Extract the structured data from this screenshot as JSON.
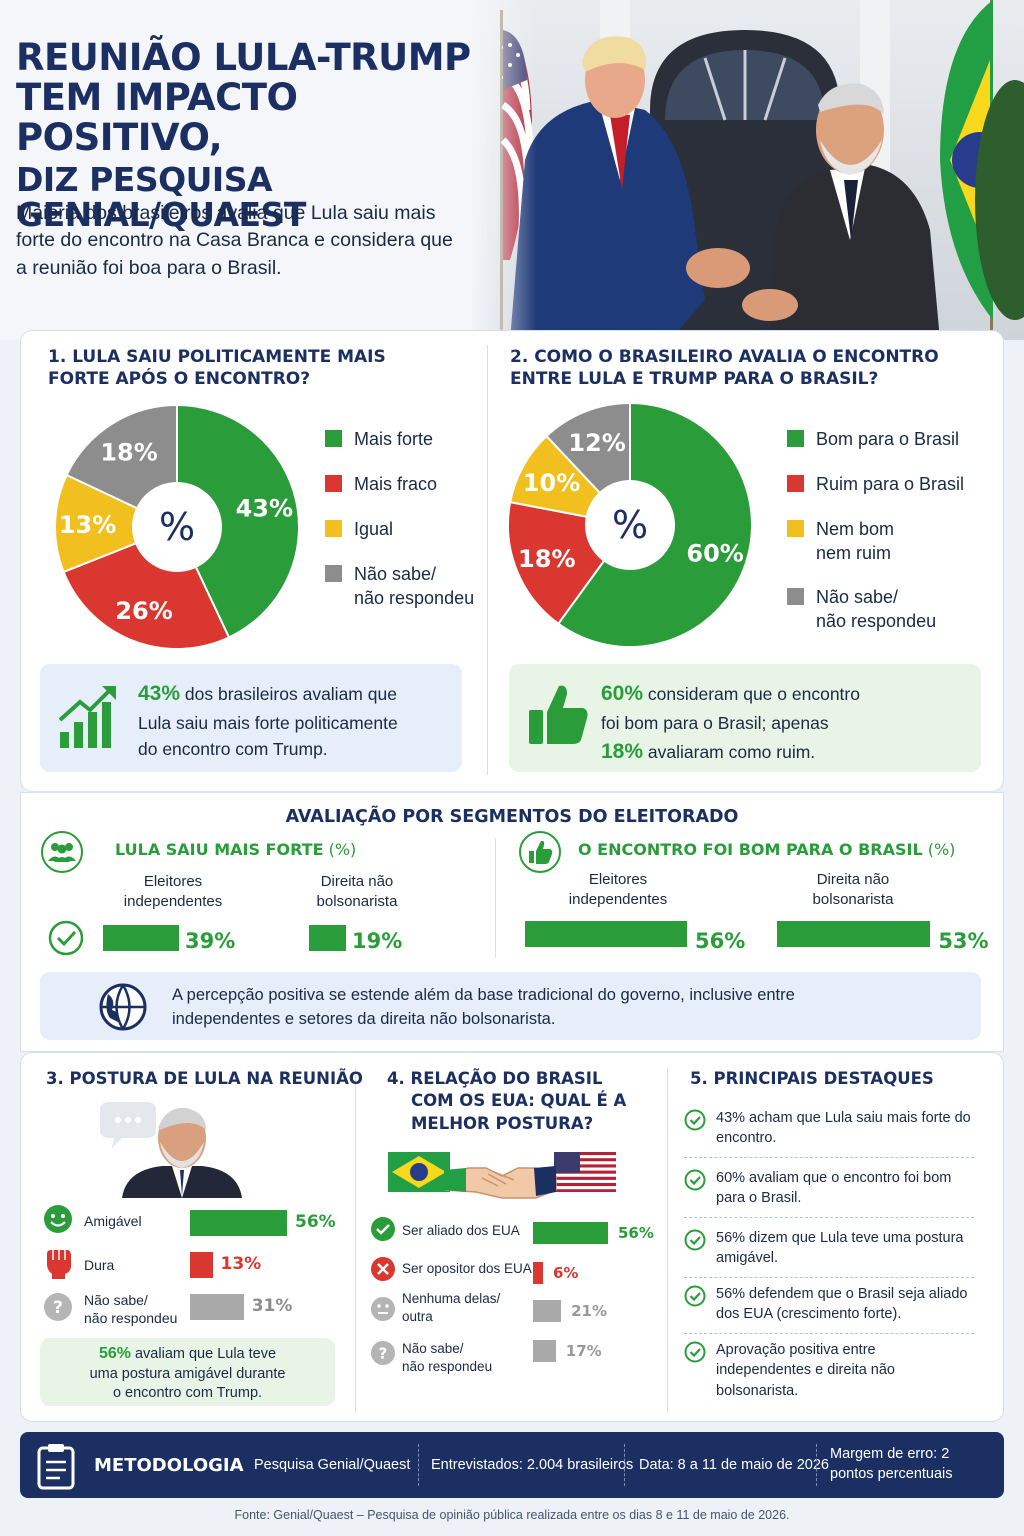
{
  "header": {
    "title_line1": "REUNIÃO LULA-TRUMP",
    "title_line2": "TEM IMPACTO POSITIVO,",
    "title_line3": "DIZ PESQUISA GENIAL/QUAEST",
    "subtitle": "Maioria dos brasileiros avalia que Lula saiu mais forte do encontro na Casa Branca e considera que a reunião foi boa para o Brasil."
  },
  "q1": {
    "title": "1. LULA SAIU POLITICAMENTE MAIS FORTE APÓS O ENCONTRO?",
    "center": "%",
    "slices": [
      {
        "label": "Mais forte",
        "value": 43,
        "text": "43%",
        "color": "#2a9d3a"
      },
      {
        "label": "Mais fraco",
        "value": 26,
        "text": "26%",
        "color": "#d9372f"
      },
      {
        "label": "Igual",
        "value": 13,
        "text": "13%",
        "color": "#f2c01e"
      },
      {
        "label": "Não sabe/\nnão respondeu",
        "value": 18,
        "text": "18%",
        "color": "#8d8d8d"
      }
    ],
    "legend": [
      "Mais forte",
      "Mais fraco",
      "Igual",
      "Não sabe/",
      "não respondeu"
    ],
    "callout_value": "43%",
    "callout_text_1": " dos brasileiros avaliam que",
    "callout_text_2": "Lula saiu mais forte politicamente",
    "callout_text_3": "do encontro com Trump."
  },
  "q2": {
    "title": "2. COMO O BRASILEIRO AVALIA O ENCONTRO ENTRE LULA E TRUMP PARA O BRASIL?",
    "center": "%",
    "slices": [
      {
        "label": "Bom para o Brasil",
        "value": 60,
        "text": "60%",
        "color": "#2a9d3a"
      },
      {
        "label": "Ruim para o Brasil",
        "value": 18,
        "text": "18%",
        "color": "#d9372f"
      },
      {
        "label": "Nem bom nem ruim",
        "value": 10,
        "text": "10%",
        "color": "#f2c01e"
      },
      {
        "label": "Não sabe/ não respondeu",
        "value": 12,
        "text": "12%",
        "color": "#8d8d8d"
      }
    ],
    "legend": [
      "Bom para o Brasil",
      "Ruim para o Brasil",
      "Nem bom",
      "nem ruim",
      "Não sabe/",
      "não respondeu"
    ],
    "callout_value1": "60%",
    "callout_text_1": " consideram que o encontro",
    "callout_text_2": "foi bom para o Brasil; apenas",
    "callout_value2": "18%",
    "callout_text_3": " avaliaram como ruim."
  },
  "segments": {
    "title": "AVALIAÇÃO POR SEGMENTOS DO ELEITORADO",
    "left_title": "LULA SAIU MAIS FORTE",
    "left_unit": " (%)",
    "right_title": "O ENCONTRO FOI BOM PARA O BRASIL",
    "right_unit": " (%)",
    "cat1_a": "Eleitores",
    "cat1_b": "independentes",
    "cat2_a": "Direita não",
    "cat2_b": "bolsonarista",
    "left_values": [
      39,
      19
    ],
    "left_texts": [
      "39%",
      "19%"
    ],
    "right_values": [
      56,
      53
    ],
    "right_texts": [
      "56%",
      "53%"
    ],
    "note_1": "A percepção positiva se estende além da base tradicional do governo, inclusive entre",
    "note_2": "independentes e setores da direita não bolsonarista."
  },
  "q3": {
    "title": "3. POSTURA DE LULA NA REUNIÃO",
    "rows": [
      {
        "label": "Amigável",
        "value": 56,
        "text": "56%",
        "color": "#2a9d3a"
      },
      {
        "label": "Dura",
        "value": 13,
        "text": "13%",
        "color": "#d9372f"
      },
      {
        "label_a": "Não sabe/",
        "label_b": "não respondeu",
        "value": 31,
        "text": "31%",
        "color": "#a9a9a9"
      }
    ],
    "callout_value": "56%",
    "callout_text_1": " avaliam que Lula teve",
    "callout_text_2": "uma postura amigável durante",
    "callout_text_3": "o encontro com Trump."
  },
  "q4": {
    "title_1": "4. RELAÇÃO DO BRASIL",
    "title_2": "COM OS EUA: QUAL É A",
    "title_3": "MELHOR POSTURA?",
    "rows": [
      {
        "label": "Ser aliado dos EUA",
        "value": 56,
        "text": "56%",
        "color": "#2a9d3a"
      },
      {
        "label": "Ser opositor dos EUA",
        "value": 6,
        "text": "6%",
        "color": "#d9372f"
      },
      {
        "label_a": "Nenhuma delas/",
        "label_b": "outra",
        "value": 21,
        "text": "21%",
        "color": "#a9a9a9"
      },
      {
        "label_a": "Não sabe/",
        "label_b": "não respondeu",
        "value": 17,
        "text": "17%",
        "color": "#a9a9a9"
      }
    ]
  },
  "q5": {
    "title": "5. PRINCIPAIS DESTAQUES",
    "items": [
      "43% acham que Lula saiu mais forte do encontro.",
      "60% avaliam que o encontro foi bom para o Brasil.",
      "56% dizem que Lula teve uma postura amigável.",
      "56% defendem que o Brasil seja aliado dos EUA (crescimento forte).",
      "Aprovação positiva entre independentes e direita não bolsonarista."
    ]
  },
  "footer": {
    "label": "METODOLOGIA",
    "survey": "Pesquisa Genial/Quaest",
    "sample": "Entrevistados: 2.004 brasileiros",
    "date": "Data: 8 a 11 de maio de 2026",
    "margin_1": "Margem de erro: 2",
    "margin_2": "pontos percentuais",
    "source": "Fonte: Genial/Quaest – Pesquisa de opinião pública realizada entre os dias 8 e 11 de maio de 2026."
  }
}
